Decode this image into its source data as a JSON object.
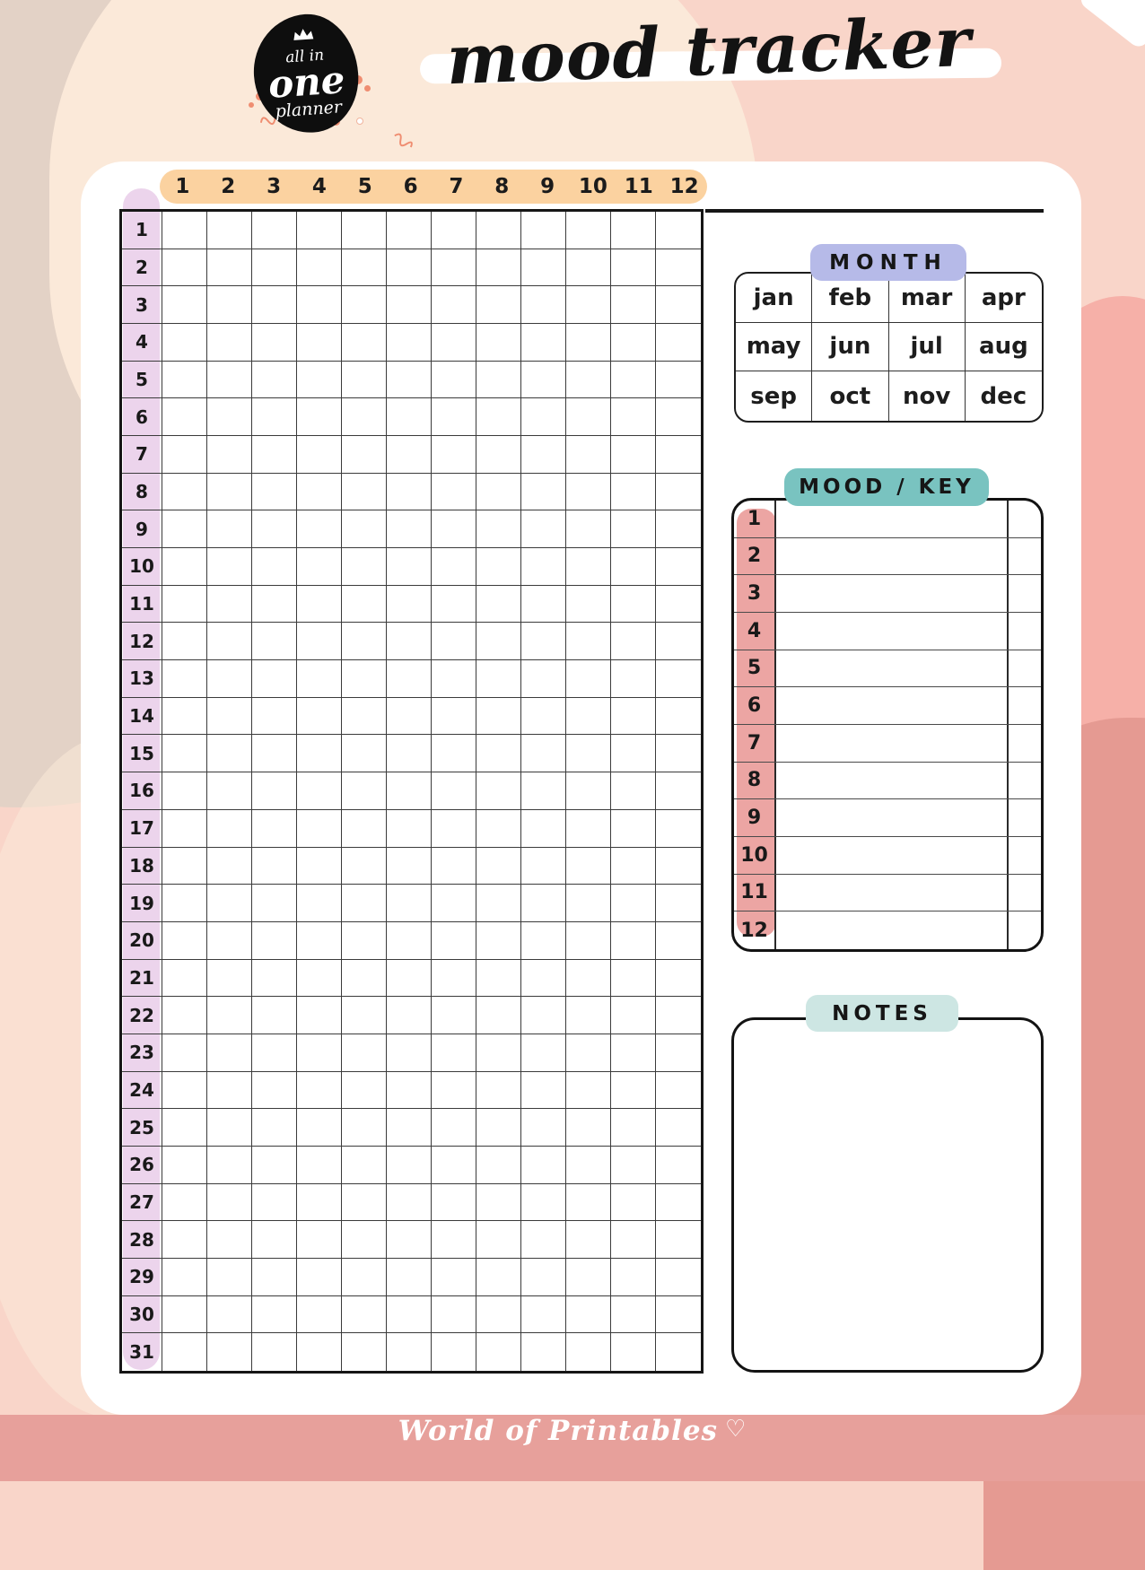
{
  "header": {
    "logo": {
      "line1": "all in",
      "line2": "one",
      "line3": "planner"
    },
    "title": "mood tracker"
  },
  "tracker_grid": {
    "column_headers": [
      "1",
      "2",
      "3",
      "4",
      "5",
      "6",
      "7",
      "8",
      "9",
      "10",
      "11",
      "12"
    ],
    "row_labels": [
      "1",
      "2",
      "3",
      "4",
      "5",
      "6",
      "7",
      "8",
      "9",
      "10",
      "11",
      "12",
      "13",
      "14",
      "15",
      "16",
      "17",
      "18",
      "19",
      "20",
      "21",
      "22",
      "23",
      "24",
      "25",
      "26",
      "27",
      "28",
      "29",
      "30",
      "31"
    ]
  },
  "month_section": {
    "label": "MONTH",
    "months": [
      "jan",
      "feb",
      "mar",
      "apr",
      "may",
      "jun",
      "jul",
      "aug",
      "sep",
      "oct",
      "nov",
      "dec"
    ]
  },
  "mood_key_section": {
    "label": "MOOD / KEY",
    "row_numbers": [
      "1",
      "2",
      "3",
      "4",
      "5",
      "6",
      "7",
      "8",
      "9",
      "10",
      "11",
      "12"
    ]
  },
  "notes_section": {
    "label": "NOTES"
  },
  "footer": {
    "brand": "World of Printables",
    "heart": "♡"
  },
  "colors": {
    "taupe": "#e3d2c6",
    "cream": "#fbe9d9",
    "base_pink": "#f9d5c9",
    "salmon": "#f6b0a8",
    "dusty_rose": "#e59a92",
    "footer_pink": "#e7a09b",
    "orange_pill": "#fbd2a0",
    "lavender": "#ecd4ec",
    "periwinkle": "#b6bae8",
    "teal": "#79c3c0",
    "salmon_pink": "#eca5a3",
    "mint": "#cde6e3"
  }
}
